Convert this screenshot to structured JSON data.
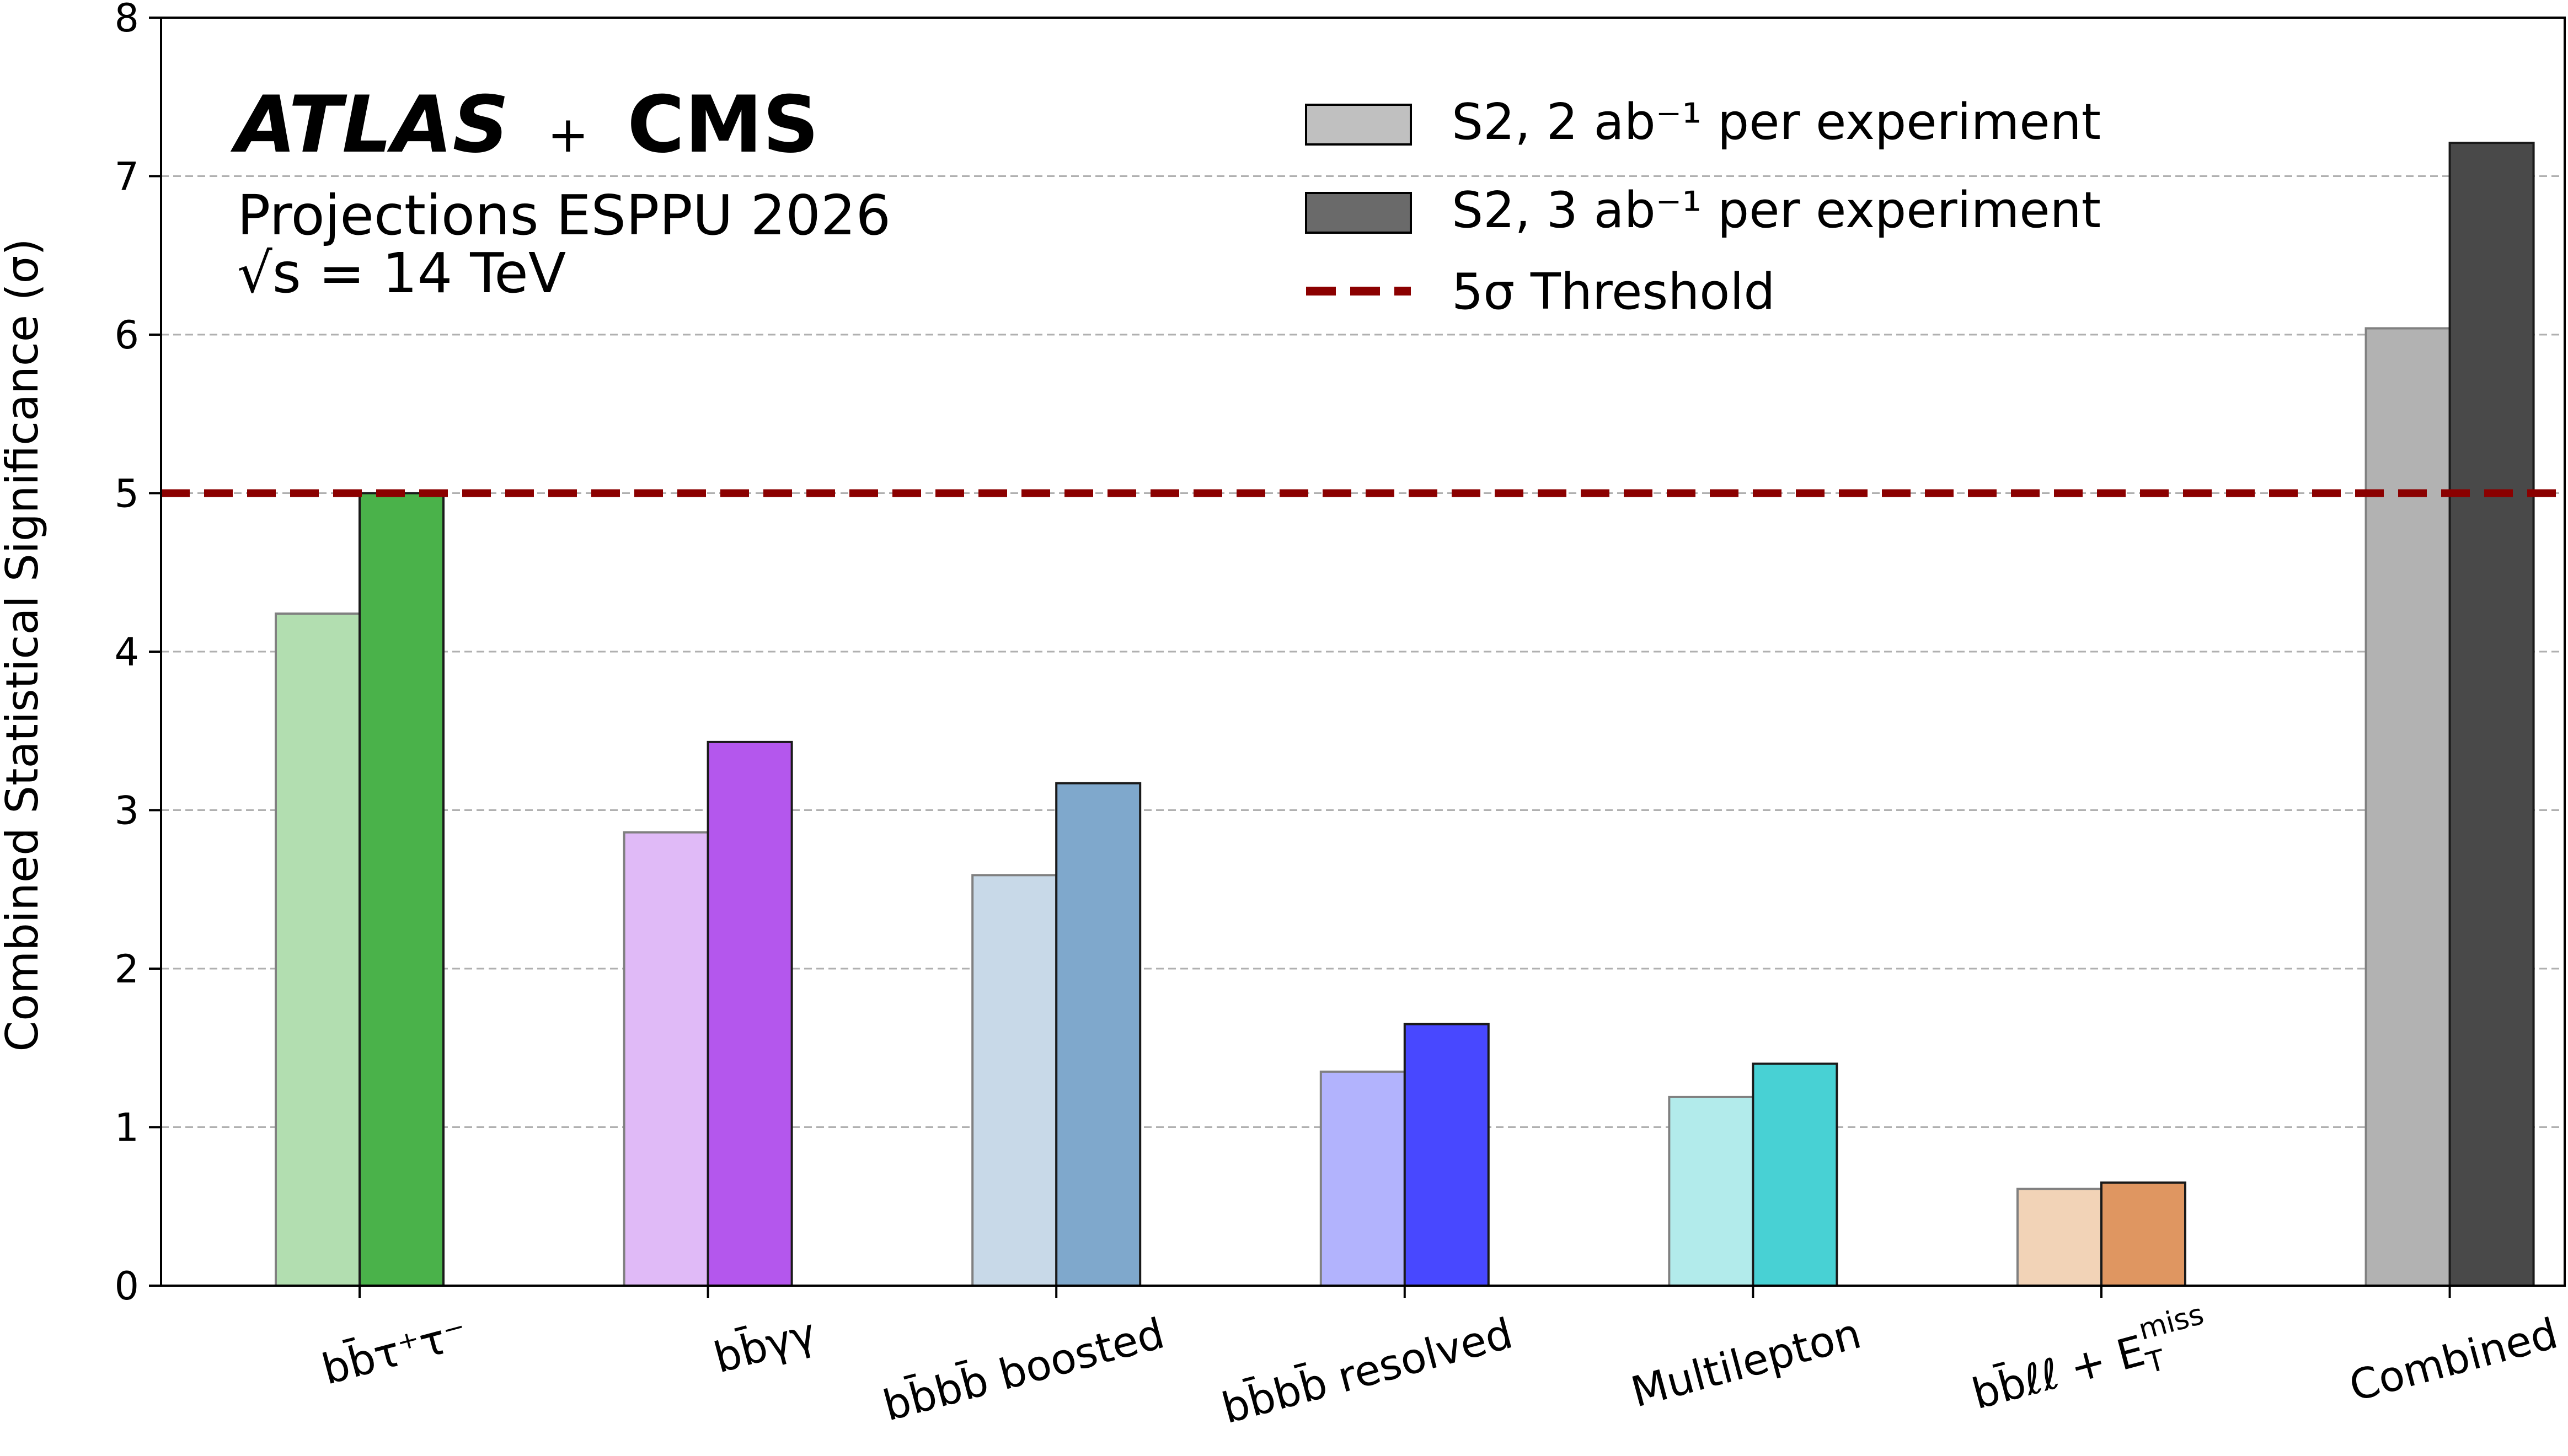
{
  "chart_data": {
    "type": "bar",
    "categories": [
      "bb̄τ⁺τ⁻",
      "bb̄γγ",
      "bb̄bb̄ boosted",
      "bb̄bb̄ resolved",
      "Multilepton",
      "bb̄ℓℓ + E_T^miss",
      "Combined"
    ],
    "series": [
      {
        "name": "S2, 2 ab⁻¹ per experiment",
        "values": [
          4.24,
          2.86,
          2.59,
          1.35,
          1.19,
          0.61,
          6.04
        ],
        "colors": [
          "#b2deb0",
          "#e0baf7",
          "#c8d9e8",
          "#b2b3fd",
          "#b2ebeb",
          "#f2d3b7",
          "#b2b2b2"
        ]
      },
      {
        "name": "S2, 3 ab⁻¹ per experiment",
        "values": [
          5.0,
          3.43,
          3.17,
          1.65,
          1.4,
          0.65,
          7.21
        ],
        "colors": [
          "#4ab24a",
          "#b457ed",
          "#7fa8cc",
          "#4848ff",
          "#48d1d4",
          "#df9661",
          "#494949"
        ]
      }
    ],
    "threshold": {
      "name": "5σ Threshold",
      "value": 5,
      "color": "#8b0000"
    },
    "legend": {
      "position": "top-right",
      "swatches": [
        "#c0c0c0",
        "#6a6a6a"
      ]
    },
    "ylabel": "Combined Statistical Significance (σ)",
    "ylim": [
      0,
      8
    ],
    "yticks": [
      "0",
      "1",
      "2",
      "3",
      "4",
      "5",
      "6",
      "7",
      "8"
    ],
    "grid": "horizontal dashed",
    "annotations": {
      "experiment": [
        "ATLAS",
        "+",
        "CMS"
      ],
      "projection": "Projections ESPPU 2026",
      "energy": "√s = 14 TeV"
    }
  }
}
